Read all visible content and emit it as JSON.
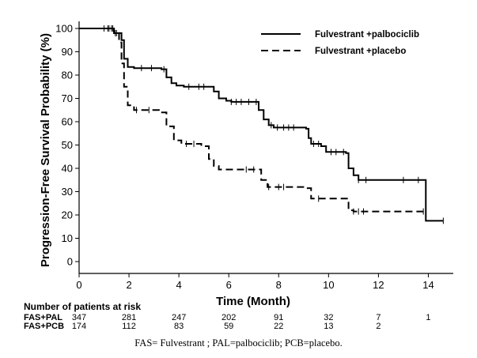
{
  "chart_data": {
    "type": "line",
    "xlabel": "Time (Month)",
    "ylabel": "Progression-Free Survival Probability (%)",
    "xlim": [
      0,
      15
    ],
    "ylim": [
      0,
      100
    ],
    "x_ticks": [
      "0",
      "2",
      "4",
      "6",
      "8",
      "10",
      "12",
      "14"
    ],
    "y_ticks": [
      "0",
      "10",
      "20",
      "30",
      "40",
      "50",
      "60",
      "70",
      "80",
      "90",
      "100"
    ],
    "grid": false,
    "legend_position": "top-right",
    "series": [
      {
        "name": "Fulvestrant +palbociclib",
        "line_style": "solid",
        "color": "#000000",
        "points": [
          [
            0,
            100
          ],
          [
            1.1,
            100
          ],
          [
            1.4,
            98
          ],
          [
            1.7,
            95
          ],
          [
            1.8,
            87
          ],
          [
            1.95,
            83.5
          ],
          [
            2.2,
            83
          ],
          [
            3.3,
            82.5
          ],
          [
            3.5,
            79
          ],
          [
            3.7,
            76.5
          ],
          [
            3.9,
            75.5
          ],
          [
            4.2,
            75
          ],
          [
            5.1,
            75
          ],
          [
            5.4,
            73
          ],
          [
            5.6,
            70
          ],
          [
            5.9,
            69
          ],
          [
            6.1,
            68.5
          ],
          [
            7.0,
            68.5
          ],
          [
            7.2,
            65
          ],
          [
            7.4,
            61
          ],
          [
            7.6,
            58.5
          ],
          [
            7.8,
            57.5
          ],
          [
            9.1,
            57
          ],
          [
            9.2,
            53
          ],
          [
            9.3,
            50.5
          ],
          [
            9.7,
            49.5
          ],
          [
            9.9,
            47
          ],
          [
            10.7,
            46.5
          ],
          [
            10.8,
            40
          ],
          [
            11.0,
            37
          ],
          [
            11.2,
            35
          ],
          [
            13.9,
            35
          ],
          [
            13.9,
            17.5
          ],
          [
            14.6,
            17.5
          ]
        ],
        "censor_x": [
          1.0,
          1.15,
          1.3,
          1.45,
          2.5,
          2.9,
          3.4,
          4.4,
          4.8,
          5.0,
          6.1,
          6.3,
          6.5,
          6.8,
          7.1,
          7.7,
          7.95,
          8.2,
          8.4,
          8.6,
          9.4,
          9.6,
          10.1,
          10.3,
          10.6,
          11.2,
          11.5,
          13.0,
          13.6,
          14.6
        ]
      },
      {
        "name": "Fulvestrant +placebo",
        "line_style": "dashed",
        "color": "#000000",
        "points": [
          [
            0,
            100
          ],
          [
            1.1,
            100
          ],
          [
            1.4,
            98
          ],
          [
            1.6,
            94
          ],
          [
            1.7,
            85
          ],
          [
            1.8,
            75
          ],
          [
            1.95,
            67
          ],
          [
            2.2,
            65
          ],
          [
            3.2,
            64
          ],
          [
            3.5,
            58
          ],
          [
            3.8,
            52
          ],
          [
            4.1,
            50.5
          ],
          [
            4.9,
            49.5
          ],
          [
            5.2,
            44
          ],
          [
            5.4,
            41
          ],
          [
            5.6,
            39.5
          ],
          [
            7.1,
            39.5
          ],
          [
            7.3,
            35
          ],
          [
            7.55,
            32
          ],
          [
            9.1,
            31.5
          ],
          [
            9.3,
            27
          ],
          [
            10.7,
            27
          ],
          [
            10.8,
            22
          ],
          [
            11.0,
            21.5
          ],
          [
            13.8,
            21.5
          ]
        ],
        "censor_x": [
          1.2,
          1.35,
          1.5,
          2.3,
          2.8,
          4.3,
          4.6,
          6.7,
          7.0,
          7.6,
          8.0,
          8.2,
          9.6,
          11.0,
          11.2,
          11.4,
          13.8
        ]
      }
    ],
    "at_risk": {
      "title": "Number of patients at risk",
      "time_points": [
        0,
        2,
        4,
        6,
        8,
        10,
        12,
        14
      ],
      "rows": [
        {
          "label": "FAS+PAL",
          "values": [
            "347",
            "281",
            "247",
            "202",
            "91",
            "32",
            "7",
            "1"
          ]
        },
        {
          "label": "FAS+PCB",
          "values": [
            "174",
            "112",
            "83",
            "59",
            "22",
            "13",
            "2",
            ""
          ]
        }
      ]
    },
    "footnote": "FAS= Fulvestrant ; PAL=palbociclib; PCB=placebo."
  }
}
